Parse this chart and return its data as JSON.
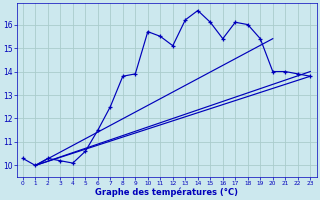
{
  "xlabel": "Graphe des températures (°C)",
  "bg_color": "#cce8ee",
  "grid_color": "#aacccc",
  "line_color": "#0000bb",
  "xlim": [
    -0.5,
    23.5
  ],
  "ylim": [
    9.5,
    16.9
  ],
  "yticks": [
    10,
    11,
    12,
    13,
    14,
    15,
    16
  ],
  "xticks": [
    0,
    1,
    2,
    3,
    4,
    5,
    6,
    7,
    8,
    9,
    10,
    11,
    12,
    13,
    14,
    15,
    16,
    17,
    18,
    19,
    20,
    21,
    22,
    23
  ],
  "line1_x": [
    0,
    1,
    2,
    3,
    4,
    5,
    6,
    7,
    8,
    9,
    10,
    11,
    12,
    13,
    14,
    15,
    16,
    17,
    18,
    19,
    20,
    21,
    22,
    23
  ],
  "line1_y": [
    10.3,
    10.0,
    10.3,
    10.2,
    10.1,
    10.6,
    11.5,
    12.5,
    13.8,
    13.9,
    15.7,
    15.5,
    15.1,
    16.2,
    16.6,
    16.1,
    15.4,
    16.1,
    16.0,
    15.4,
    14.0,
    14.0,
    13.9,
    13.8
  ],
  "line2_x": [
    1,
    23
  ],
  "line2_y": [
    10.0,
    13.8
  ],
  "line3_x": [
    1,
    20
  ],
  "line3_y": [
    10.0,
    15.4
  ],
  "line4_x": [
    1,
    23
  ],
  "line4_y": [
    10.0,
    14.0
  ]
}
